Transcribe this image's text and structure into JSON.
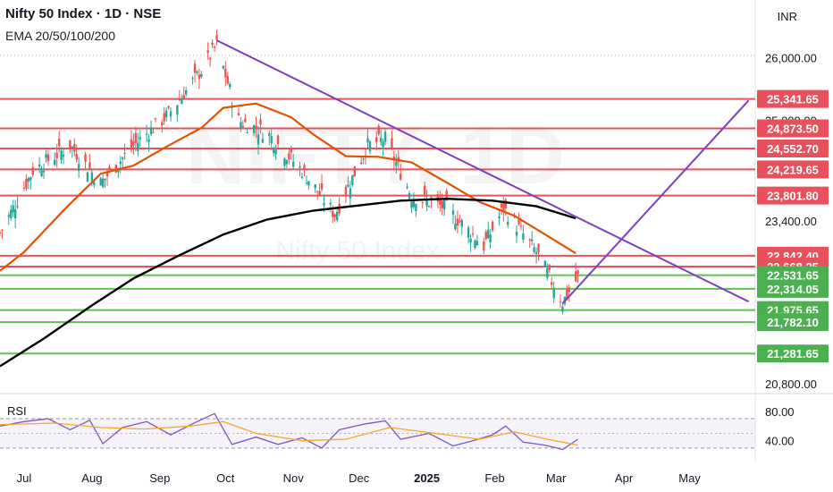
{
  "header": {
    "title": "Nifty 50 Index · 1D · NSE",
    "subtitle": "EMA 20/50/100/200",
    "currency": "INR"
  },
  "chart_data": [
    {
      "type": "candlestick",
      "title": "Nifty 50 Index · 1D · NSE",
      "watermark": "NIFTY, 1D",
      "watermark_sub": "Nifty 50 Index",
      "x": {
        "type": "date",
        "range": [
          "2024-06-20",
          "2025-05-31"
        ],
        "tick_labels": [
          {
            "date": "2024-07-01",
            "label": "Jul"
          },
          {
            "date": "2024-08-01",
            "label": "Aug"
          },
          {
            "date": "2024-09-01",
            "label": "Sep"
          },
          {
            "date": "2024-10-01",
            "label": "Oct"
          },
          {
            "date": "2024-11-01",
            "label": "Nov"
          },
          {
            "date": "2024-12-01",
            "label": "Dec"
          },
          {
            "date": "2025-01-01",
            "label": "2025",
            "bold": true
          },
          {
            "date": "2025-02-01",
            "label": "Feb"
          },
          {
            "date": "2025-03-01",
            "label": "Mar"
          },
          {
            "date": "2025-04-01",
            "label": "Apr"
          },
          {
            "date": "2025-05-01",
            "label": "May"
          }
        ]
      },
      "y": {
        "range": [
          20700,
          26350
        ],
        "axis_labels": [
          {
            "value": 26000,
            "label": "26,000.00"
          },
          {
            "value": 25000,
            "label": "25,000.00"
          },
          {
            "value": 23400,
            "label": "23,400.00"
          },
          {
            "value": 20800,
            "label": "20,800.00"
          }
        ],
        "grid": false
      },
      "levels": [
        {
          "value": 25341.65,
          "label": "25,341.65",
          "kind": "resistance"
        },
        {
          "value": 24873.5,
          "label": "24,873.50",
          "kind": "resistance"
        },
        {
          "value": 24552.7,
          "label": "24,552.70",
          "kind": "resistance"
        },
        {
          "value": 24219.65,
          "label": "24,219.65",
          "kind": "resistance"
        },
        {
          "value": 23801.8,
          "label": "23,801.80",
          "kind": "resistance"
        },
        {
          "value": 22842.4,
          "label": "22,842.40",
          "kind": "resistance"
        },
        {
          "value": 22668.25,
          "label": "22,668.25",
          "kind": "resistance"
        },
        {
          "value": 22531.65,
          "label": "22,531.65",
          "kind": "support"
        },
        {
          "value": 22314.05,
          "label": "22,314.05",
          "kind": "support"
        },
        {
          "value": 21975.65,
          "label": "21,975.65",
          "kind": "support"
        },
        {
          "value": 21782.1,
          "label": "21,782.10",
          "kind": "support"
        },
        {
          "value": 21281.65,
          "label": "21,281.65",
          "kind": "support"
        }
      ],
      "trendlines": [
        {
          "name": "descending",
          "from": {
            "date": "2024-09-27",
            "value": 26277
          },
          "to": {
            "date": "2025-05-28",
            "value": 22110
          }
        },
        {
          "name": "ascending",
          "from": {
            "date": "2025-03-04",
            "value": 22080
          },
          "to": {
            "date": "2025-05-28",
            "value": 25320
          }
        }
      ],
      "series": [
        {
          "kind": "ema",
          "period": 50,
          "color": "#e65100",
          "points": [
            [
              "2024-06-20",
              22600
            ],
            [
              "2024-07-01",
              22900
            ],
            [
              "2024-07-20",
              23600
            ],
            [
              "2024-08-05",
              24150
            ],
            [
              "2024-08-20",
              24280
            ],
            [
              "2024-09-05",
              24600
            ],
            [
              "2024-09-20",
              24880
            ],
            [
              "2024-09-30",
              25200
            ],
            [
              "2024-10-15",
              25270
            ],
            [
              "2024-10-31",
              25050
            ],
            [
              "2024-11-10",
              24780
            ],
            [
              "2024-11-25",
              24430
            ],
            [
              "2024-12-10",
              24420
            ],
            [
              "2024-12-25",
              24330
            ],
            [
              "2025-01-10",
              24010
            ],
            [
              "2025-01-25",
              23700
            ],
            [
              "2025-02-10",
              23480
            ],
            [
              "2025-02-25",
              23160
            ],
            [
              "2025-03-10",
              22880
            ]
          ]
        },
        {
          "kind": "ema",
          "period": 200,
          "color": "#000000",
          "points": [
            [
              "2024-06-20",
              21080
            ],
            [
              "2024-07-10",
              21520
            ],
            [
              "2024-08-01",
              22050
            ],
            [
              "2024-08-20",
              22480
            ],
            [
              "2024-09-10",
              22850
            ],
            [
              "2024-09-30",
              23180
            ],
            [
              "2024-10-20",
              23420
            ],
            [
              "2024-11-10",
              23560
            ],
            [
              "2024-11-30",
              23640
            ],
            [
              "2024-12-20",
              23720
            ],
            [
              "2025-01-10",
              23750
            ],
            [
              "2025-01-31",
              23720
            ],
            [
              "2025-02-20",
              23630
            ],
            [
              "2025-03-10",
              23440
            ]
          ]
        }
      ]
    },
    {
      "type": "line",
      "title": "RSI",
      "y": {
        "range": [
          25,
          92
        ],
        "axis_labels": [
          {
            "value": 80,
            "label": "80.00"
          },
          {
            "value": 40,
            "label": "40.00"
          }
        ]
      },
      "bands": [
        70,
        30
      ],
      "series": [
        {
          "name": "RSI",
          "color": "#7e57c2",
          "points": [
            [
              "2024-06-20",
              60
            ],
            [
              "2024-07-01",
              66
            ],
            [
              "2024-07-12",
              70
            ],
            [
              "2024-07-22",
              55
            ],
            [
              "2024-07-31",
              68
            ],
            [
              "2024-08-06",
              36
            ],
            [
              "2024-08-15",
              58
            ],
            [
              "2024-08-26",
              66
            ],
            [
              "2024-09-06",
              48
            ],
            [
              "2024-09-18",
              66
            ],
            [
              "2024-09-26",
              77
            ],
            [
              "2024-10-04",
              35
            ],
            [
              "2024-10-15",
              45
            ],
            [
              "2024-10-25",
              35
            ],
            [
              "2024-11-05",
              44
            ],
            [
              "2024-11-14",
              30
            ],
            [
              "2024-11-22",
              55
            ],
            [
              "2024-12-04",
              63
            ],
            [
              "2024-12-13",
              67
            ],
            [
              "2024-12-20",
              42
            ],
            [
              "2025-01-02",
              50
            ],
            [
              "2025-01-13",
              33
            ],
            [
              "2025-01-22",
              40
            ],
            [
              "2025-01-31",
              48
            ],
            [
              "2025-02-06",
              60
            ],
            [
              "2025-02-14",
              38
            ],
            [
              "2025-02-24",
              34
            ],
            [
              "2025-03-04",
              28
            ],
            [
              "2025-03-11",
              42
            ]
          ]
        },
        {
          "name": "RSI MA",
          "color": "#f9a825",
          "points": [
            [
              "2024-06-20",
              62
            ],
            [
              "2024-07-15",
              64
            ],
            [
              "2024-08-05",
              58
            ],
            [
              "2024-08-25",
              56
            ],
            [
              "2024-09-15",
              60
            ],
            [
              "2024-09-30",
              66
            ],
            [
              "2024-10-15",
              50
            ],
            [
              "2024-11-05",
              40
            ],
            [
              "2024-11-25",
              42
            ],
            [
              "2024-12-15",
              58
            ],
            [
              "2025-01-05",
              50
            ],
            [
              "2025-01-25",
              42
            ],
            [
              "2025-02-10",
              52
            ],
            [
              "2025-02-25",
              42
            ],
            [
              "2025-03-11",
              34
            ]
          ]
        }
      ]
    }
  ]
}
